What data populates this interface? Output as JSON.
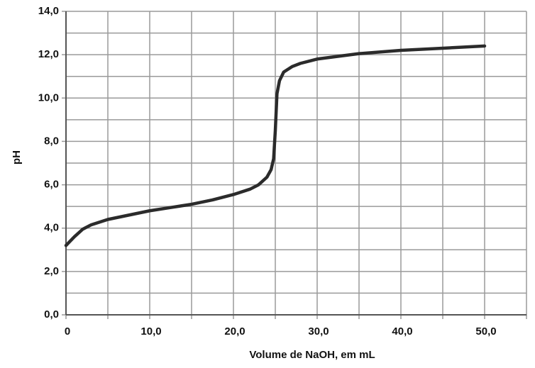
{
  "chart_data": {
    "type": "line",
    "xlabel": "Volume de NaOH, em mL",
    "ylabel": "pH",
    "x": [
      0,
      1,
      2,
      3,
      5,
      7.5,
      10,
      12.5,
      15,
      17.5,
      20,
      22,
      23,
      24,
      24.5,
      24.8,
      25,
      25.2,
      25.5,
      26,
      27,
      28,
      30,
      35,
      40,
      45,
      50
    ],
    "series": [
      {
        "name": "pH",
        "color": "#2b2b2b",
        "values": [
          3.2,
          3.6,
          3.95,
          4.15,
          4.4,
          4.6,
          4.8,
          4.95,
          5.1,
          5.3,
          5.55,
          5.8,
          6.0,
          6.35,
          6.7,
          7.2,
          8.5,
          10.2,
          10.8,
          11.2,
          11.45,
          11.6,
          11.8,
          12.05,
          12.2,
          12.3,
          12.4
        ]
      }
    ],
    "xlim": [
      0,
      55
    ],
    "xticks": [
      0,
      {
        "value": 10,
        "label": "10,0"
      },
      {
        "value": 20,
        "label": "20,0"
      },
      {
        "value": 30,
        "label": "30,0"
      },
      {
        "value": 40,
        "label": "40,0"
      },
      {
        "value": 50,
        "label": "50,0"
      }
    ],
    "xminor_ticks": [
      5,
      15,
      25,
      35,
      45,
      55
    ],
    "ylim": [
      0,
      14
    ],
    "yticks": [
      {
        "value": 0,
        "label": "0,0"
      },
      {
        "value": 2,
        "label": "2,0"
      },
      {
        "value": 4,
        "label": "4,0"
      },
      {
        "value": 6,
        "label": "6,0"
      },
      {
        "value": 8,
        "label": "8,0"
      },
      {
        "value": 10,
        "label": "10,0"
      },
      {
        "value": 12,
        "label": "12,0"
      },
      {
        "value": 14,
        "label": "14,0"
      }
    ],
    "yminor_ticks": [
      1,
      3,
      5,
      7,
      9,
      11,
      13
    ],
    "grid": true
  }
}
